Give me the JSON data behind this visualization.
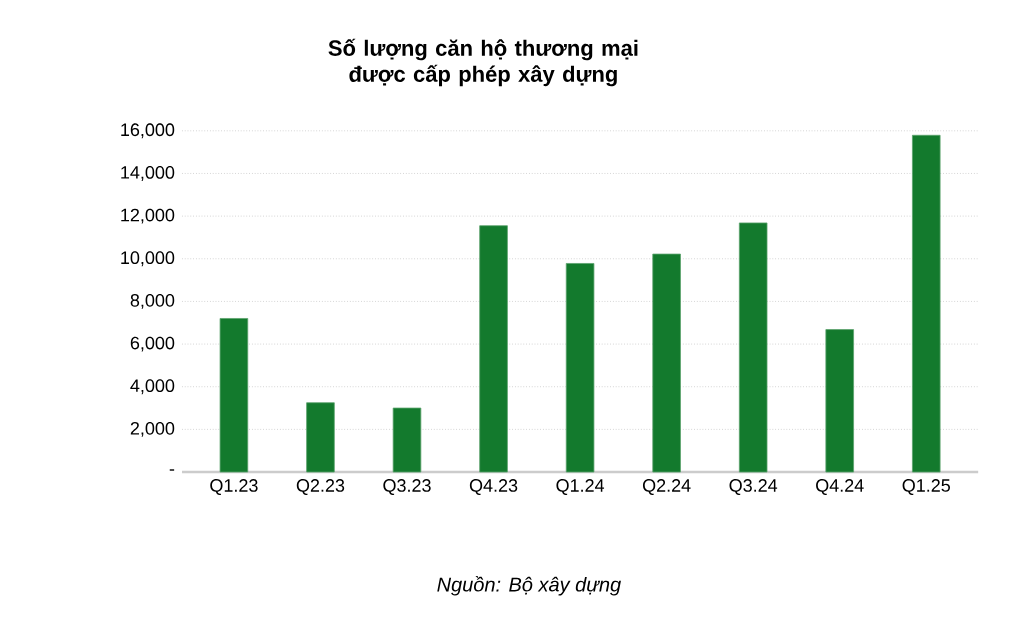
{
  "chart_data": {
    "type": "bar",
    "title": "Số lượng căn hộ thương mại được cấp phép xây dựng",
    "categories": [
      "Q1.23",
      "Q2.23",
      "Q3.23",
      "Q4.23",
      "Q1.24",
      "Q2.24",
      "Q3.24",
      "Q4.24",
      "Q1.25"
    ],
    "values": [
      7200,
      3250,
      3000,
      11550,
      9780,
      10220,
      11680,
      6680,
      15790
    ],
    "color": "#137a2d",
    "ylim": [
      0,
      16000
    ],
    "yticks": [
      {
        "value": 0,
        "label": "-"
      },
      {
        "value": 2000,
        "label": "2,000"
      },
      {
        "value": 4000,
        "label": "4,000"
      },
      {
        "value": 6000,
        "label": "6,000"
      },
      {
        "value": 8000,
        "label": "8,000"
      },
      {
        "value": 10000,
        "label": "10,000"
      },
      {
        "value": 12000,
        "label": "12,000"
      },
      {
        "value": 14000,
        "label": "14,000"
      },
      {
        "value": 16000,
        "label": "16,000"
      }
    ],
    "grid": "y",
    "annotations": [
      "Nguồn: Bộ xây dựng"
    ]
  }
}
